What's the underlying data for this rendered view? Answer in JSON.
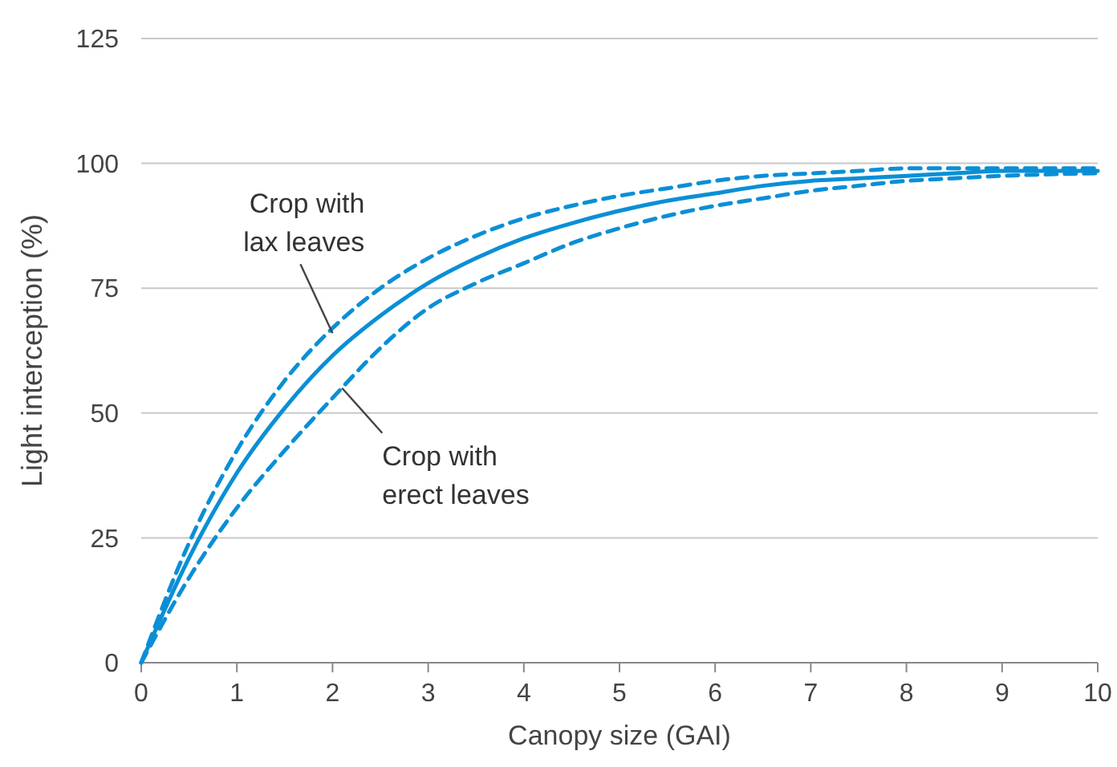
{
  "chart_data": {
    "type": "line",
    "xlabel": "Canopy size (GAI)",
    "ylabel": "Light interception (%)",
    "x": [
      0,
      0.5,
      1,
      1.5,
      2,
      2.5,
      3,
      3.5,
      4,
      4.5,
      5,
      5.5,
      6,
      6.5,
      7,
      7.5,
      8,
      8.5,
      9,
      9.5,
      10
    ],
    "series": [
      {
        "color": "#0a8fd6",
        "line_style": "dashed",
        "values": [
          0,
          24,
          42.5,
          56.5,
          67,
          75,
          81,
          85.5,
          89,
          91.5,
          93.5,
          95,
          96.5,
          97.5,
          98,
          98.5,
          99,
          99,
          99,
          99,
          99
        ]
      },
      {
        "color": "#0a8fd6",
        "line_style": "solid",
        "values": [
          0,
          21,
          38,
          51,
          61.5,
          69.5,
          76,
          81,
          85,
          88,
          90.5,
          92.5,
          94,
          95.5,
          96.5,
          97,
          97.5,
          98,
          98.5,
          98.5,
          98.5
        ]
      },
      {
        "color": "#0a8fd6",
        "line_style": "dashed",
        "values": [
          0,
          17,
          31,
          42.5,
          53,
          63,
          71,
          76,
          80,
          84,
          87,
          89.5,
          91.5,
          93,
          94.5,
          95.5,
          96.5,
          97,
          97.5,
          97.8,
          98
        ]
      }
    ],
    "xlim": [
      0,
      10
    ],
    "xticks": [
      0,
      1,
      2,
      3,
      4,
      5,
      6,
      7,
      8,
      9,
      10
    ],
    "ylim": [
      0,
      125
    ],
    "yticks": [
      0,
      25,
      50,
      75,
      100,
      125
    ],
    "grid": "y",
    "annotations": [
      {
        "text": "Crop with\nlax leaves",
        "x": 2,
        "y": 66
      },
      {
        "text": "Crop with\nerect leaves",
        "x": 2.1,
        "y": 55
      }
    ]
  }
}
